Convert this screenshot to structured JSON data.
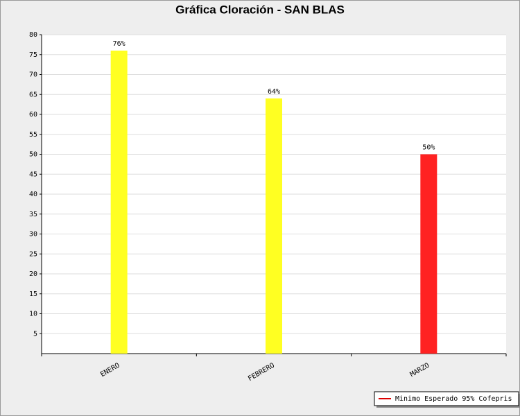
{
  "chart_data": {
    "type": "bar",
    "title": "Gráfica Cloración - SAN BLAS",
    "categories": [
      "ENERO",
      "FEBRERO",
      "MARZO"
    ],
    "values": [
      76,
      64,
      50
    ],
    "value_labels": [
      "76%",
      "64%",
      "50%"
    ],
    "colors": [
      "#ffff22",
      "#ffff22",
      "#ff2222"
    ],
    "ylim": [
      0,
      80
    ],
    "yticks": [
      5,
      10,
      15,
      20,
      25,
      30,
      35,
      40,
      45,
      50,
      55,
      60,
      65,
      70,
      75,
      80
    ],
    "grid": true,
    "legend": {
      "name": "Minimo Esperado 95% Cofepris",
      "color": "#dd0000",
      "position": "bottom-right"
    }
  }
}
